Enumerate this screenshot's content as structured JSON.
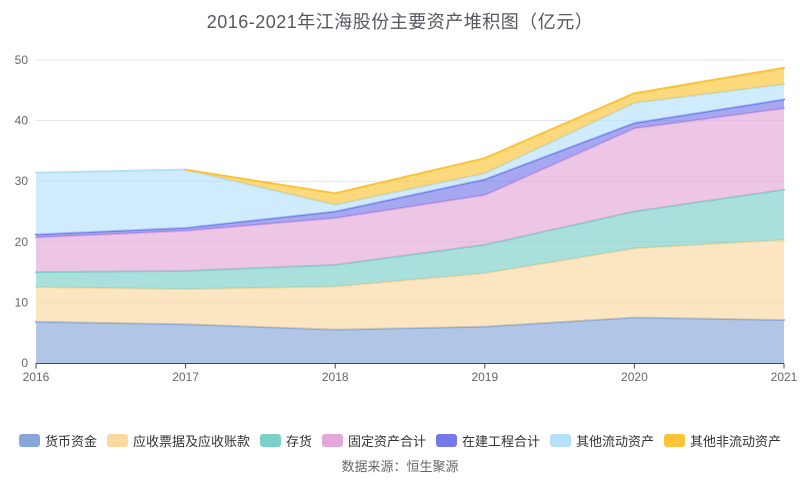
{
  "title": "2016-2021年江海股份主要资产堆积图（亿元）",
  "source": "数据来源：恒生聚源",
  "colors": {
    "axis_line": "#47484f",
    "axis_label": "#666666",
    "gridline": "#dde1f0",
    "title_text": "#565660",
    "legend_text": "#333333"
  },
  "chart_data": {
    "type": "area",
    "stacked": true,
    "title": "2016-2021年江海股份主要资产堆积图（亿元）",
    "x": [
      2016,
      2017,
      2018,
      2019,
      2020,
      2021
    ],
    "series": [
      {
        "name": "货币资金",
        "color": "#87a7d8",
        "values": [
          6.8,
          6.4,
          5.5,
          6.0,
          7.5,
          7.1
        ]
      },
      {
        "name": "应收票据及应收账款",
        "color": "#fad8a0",
        "values": [
          5.7,
          5.8,
          7.1,
          8.8,
          11.4,
          13.2
        ]
      },
      {
        "name": "存货",
        "color": "#7dd0ca",
        "values": [
          2.5,
          3.0,
          3.6,
          4.7,
          6.1,
          8.3
        ]
      },
      {
        "name": "固定资产合计",
        "color": "#e3a8d9",
        "values": [
          5.7,
          6.6,
          7.7,
          8.2,
          13.7,
          13.4
        ]
      },
      {
        "name": "在建工程合计",
        "color": "#7579e8",
        "values": [
          0.5,
          0.5,
          1.1,
          2.6,
          0.9,
          1.5
        ]
      },
      {
        "name": "其他流动资产",
        "color": "#b5e0fa",
        "values": [
          10.2,
          9.6,
          1.1,
          1.0,
          3.3,
          2.5
        ]
      },
      {
        "name": "其他非流动资产",
        "color": "#fbc438",
        "values": [
          null,
          0,
          1.9,
          2.5,
          1.6,
          2.7
        ]
      }
    ],
    "xlabel": "",
    "ylabel": "",
    "ylim": [
      0,
      50
    ],
    "yticks": [
      0,
      10,
      20,
      30,
      40,
      50
    ],
    "grid": true,
    "legend_position": "bottom"
  }
}
